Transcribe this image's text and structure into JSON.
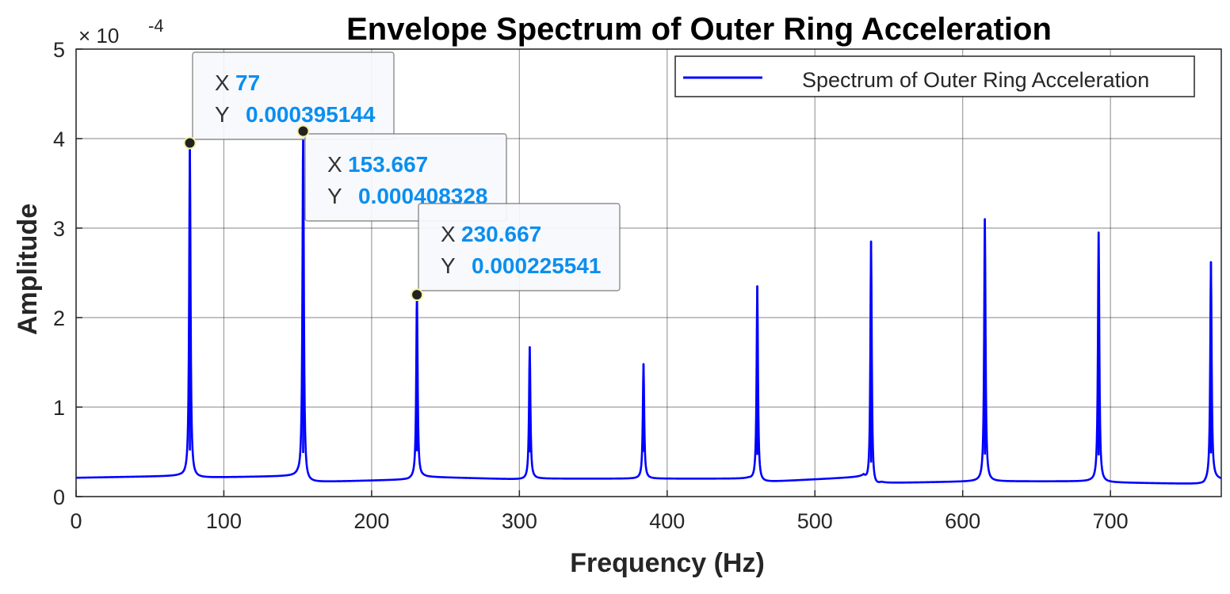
{
  "chart_data": {
    "type": "line",
    "title": "Envelope Spectrum of Outer Ring Acceleration",
    "xlabel": "Frequency (Hz)",
    "ylabel": "Amplitude",
    "exponent_label": "× 10",
    "exponent_power": "-4",
    "xlim": [
      0,
      775
    ],
    "ylim": [
      0,
      5
    ],
    "y_scale_factor": 0.0001,
    "xticks": [
      "0",
      "100",
      "200",
      "300",
      "400",
      "500",
      "600",
      "700"
    ],
    "yticks": [
      "0",
      "1",
      "2",
      "3",
      "4",
      "5"
    ],
    "grid": true,
    "legend_position": "top-right",
    "series": [
      {
        "name": "Spectrum of Outer Ring Acceleration",
        "color": "#0000ff",
        "baseline": [
          [
            0,
            0.21
          ],
          [
            70,
            0.23
          ],
          [
            80,
            0.21
          ],
          [
            150,
            0.23
          ],
          [
            156,
            0.16
          ],
          [
            225,
            0.19
          ],
          [
            235,
            0.22
          ],
          [
            305,
            0.19
          ],
          [
            310,
            0.2
          ],
          [
            380,
            0.2
          ],
          [
            385,
            0.2
          ],
          [
            455,
            0.2
          ],
          [
            462,
            0.16
          ],
          [
            533,
            0.22
          ],
          [
            538,
            0.08
          ],
          [
            545,
            0.15
          ],
          [
            610,
            0.17
          ],
          [
            615,
            0.17
          ],
          [
            687,
            0.17
          ],
          [
            692,
            0.16
          ],
          [
            763,
            0.14
          ],
          [
            770,
            0.2
          ],
          [
            775,
            0.19
          ]
        ],
        "peaks": [
          {
            "x": 77,
            "y": 3.95
          },
          {
            "x": 153.667,
            "y": 4.08
          },
          {
            "x": 230.667,
            "y": 2.26
          },
          {
            "x": 307,
            "y": 1.67
          },
          {
            "x": 384,
            "y": 1.48
          },
          {
            "x": 461,
            "y": 2.35
          },
          {
            "x": 538,
            "y": 2.85
          },
          {
            "x": 615,
            "y": 3.1
          },
          {
            "x": 692,
            "y": 2.95
          },
          {
            "x": 768,
            "y": 2.62
          }
        ]
      }
    ],
    "datatips": [
      {
        "x_label": "X",
        "x_value": "77",
        "y_label": "Y",
        "y_value": "0.000395144",
        "x": 77,
        "y": 3.95144
      },
      {
        "x_label": "X",
        "x_value": "153.667",
        "y_label": "Y",
        "y_value": "0.000408328",
        "x": 153.667,
        "y": 4.08328
      },
      {
        "x_label": "X",
        "x_value": "230.667",
        "y_label": "Y",
        "y_value": "0.000225541",
        "x": 230.667,
        "y": 2.25541
      }
    ]
  },
  "colors": {
    "line": "#0000ff",
    "datatip_value": "#0a8ff0",
    "datatip_label": "#333333",
    "datatip_bg": "#f7f8fd",
    "grid": "#262626",
    "text": "#262626"
  }
}
